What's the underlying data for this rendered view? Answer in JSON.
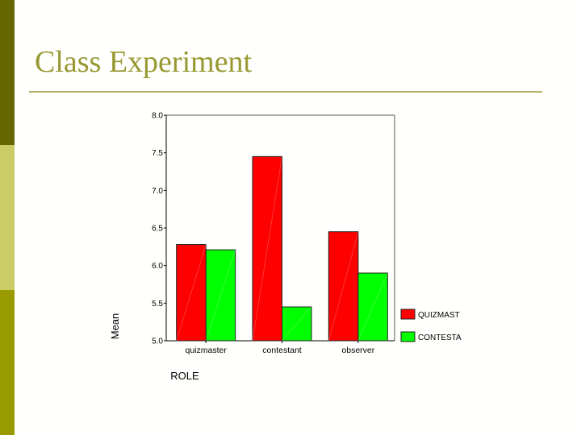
{
  "slide": {
    "title": "Class Experiment",
    "colors": {
      "title": "#999933",
      "rule": "#b3b36b",
      "sidebar": [
        "#666600",
        "#cccc66",
        "#999900"
      ]
    }
  },
  "chart_data": {
    "type": "bar",
    "title": "",
    "xlabel": "ROLE",
    "ylabel": "Mean",
    "categories": [
      "quizmaster",
      "contestant",
      "observer"
    ],
    "series": [
      {
        "name": "QUIZMAST",
        "color": "#ff0000",
        "values": [
          6.28,
          7.45,
          6.45
        ]
      },
      {
        "name": "CONTESTA",
        "color": "#00ff00",
        "values": [
          6.21,
          5.45,
          5.9
        ]
      }
    ],
    "ylim": [
      5.0,
      8.0
    ],
    "yticks": [
      "5.0",
      "5.5",
      "6.0",
      "6.5",
      "7.0",
      "7.5",
      "8.0"
    ],
    "grid": false,
    "legend_position": "right-bottom"
  }
}
